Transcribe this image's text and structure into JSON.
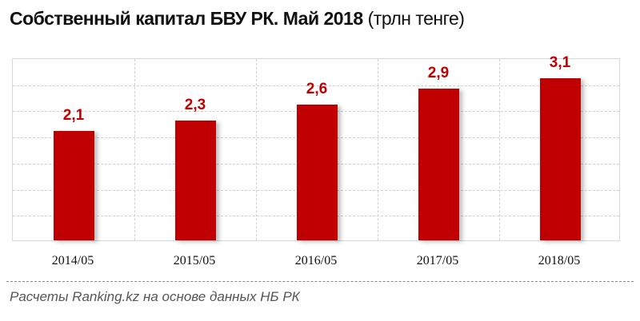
{
  "header": {
    "title": "Собственный капитал БВУ РК. Май 2018",
    "unit": "(трлн тенге)"
  },
  "chart_data": {
    "type": "bar",
    "title": "Собственный капитал БВУ РК. Май 2018 (трлн тенге)",
    "categories": [
      "2014/05",
      "2015/05",
      "2016/05",
      "2017/05",
      "2018/05"
    ],
    "values": [
      2.1,
      2.3,
      2.6,
      2.9,
      3.1
    ],
    "value_labels": [
      "2,1",
      "2,3",
      "2,6",
      "2,9",
      "3,1"
    ],
    "xlabel": "",
    "ylabel": "трлн тенге",
    "ylim": [
      0,
      3.5
    ],
    "grid": true,
    "bar_color": "#c00000",
    "legend": null
  },
  "footer": {
    "source": "Расчеты Ranking.kz на основе данных НБ РК"
  }
}
